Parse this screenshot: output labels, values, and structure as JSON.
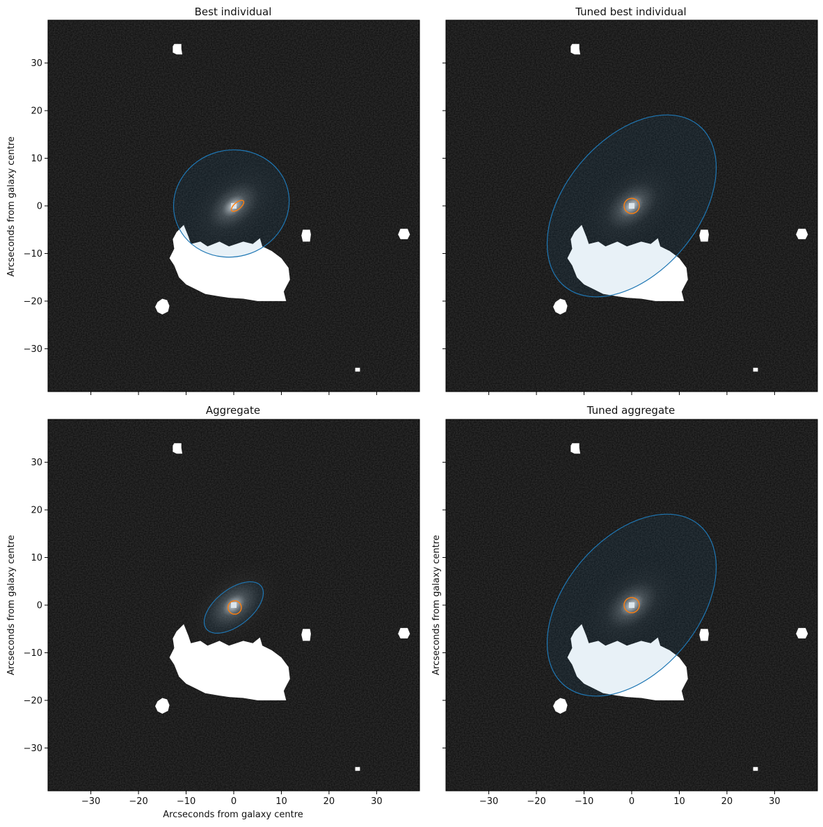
{
  "figure": {
    "colors": {
      "background_image": "#0a0a0a",
      "mask": "#ffffff",
      "ellipse_outer_stroke": "#1f77b4",
      "ellipse_outer_fill": "rgba(31,119,180,0.10)",
      "ellipse_inner_stroke": "#ff7f0e"
    }
  },
  "chart_data": [
    {
      "type": "image",
      "title": "Best individual",
      "xlabel": "",
      "ylabel": "Arcseconds from galaxy centre",
      "xlim": [
        -39,
        39
      ],
      "ylim": [
        -39,
        39
      ],
      "xticks": [
        -30,
        -20,
        -10,
        0,
        10,
        20,
        30
      ],
      "yticks": [
        -30,
        -20,
        -10,
        0,
        10,
        20,
        30
      ],
      "xtick_labels_visible": false,
      "ytick_labels_visible": true,
      "ellipses": [
        {
          "component": "disc",
          "cx": -0.5,
          "cy": 0.5,
          "rx": 12.2,
          "ry": 11.2,
          "angle_deg": 15,
          "color": "#1f77b4",
          "filled": true
        },
        {
          "component": "bulge",
          "cx": 0.8,
          "cy": 0,
          "rx": 1.6,
          "ry": 0.7,
          "angle_deg": 40,
          "color": "#ff7f0e",
          "filled": false
        }
      ]
    },
    {
      "type": "image",
      "title": "Tuned best individual",
      "xlabel": "",
      "ylabel": "",
      "xlim": [
        -39,
        39
      ],
      "ylim": [
        -39,
        39
      ],
      "xticks": [
        -30,
        -20,
        -10,
        0,
        10,
        20,
        30
      ],
      "yticks": [
        -30,
        -20,
        -10,
        0,
        10,
        20,
        30
      ],
      "xtick_labels_visible": false,
      "ytick_labels_visible": false,
      "ellipses": [
        {
          "component": "disc",
          "cx": 0,
          "cy": 0,
          "rx": 22,
          "ry": 14,
          "angle_deg": 50,
          "color": "#1f77b4",
          "filled": true
        },
        {
          "component": "bulge",
          "cx": 0,
          "cy": 0,
          "rx": 1.6,
          "ry": 1.6,
          "angle_deg": 0,
          "color": "#ff7f0e",
          "filled": false
        }
      ]
    },
    {
      "type": "image",
      "title": "Aggregate",
      "xlabel": "Arcseconds from galaxy centre",
      "ylabel": "Arcseconds from galaxy centre",
      "xlim": [
        -39,
        39
      ],
      "ylim": [
        -39,
        39
      ],
      "xticks": [
        -30,
        -20,
        -10,
        0,
        10,
        20,
        30
      ],
      "yticks": [
        -30,
        -20,
        -10,
        0,
        10,
        20,
        30
      ],
      "xtick_labels_visible": true,
      "ytick_labels_visible": true,
      "ellipses": [
        {
          "component": "disc",
          "cx": 0,
          "cy": -0.5,
          "rx": 7.3,
          "ry": 3.8,
          "angle_deg": 38,
          "color": "#1f77b4",
          "filled": true
        },
        {
          "component": "bulge",
          "cx": 0.2,
          "cy": -0.5,
          "rx": 1.4,
          "ry": 1.4,
          "angle_deg": 0,
          "color": "#ff7f0e",
          "filled": false
        }
      ]
    },
    {
      "type": "image",
      "title": "Tuned aggregate",
      "xlabel": "",
      "ylabel": "Arcseconds from galaxy centre",
      "xlim": [
        -39,
        39
      ],
      "ylim": [
        -39,
        39
      ],
      "xticks": [
        -30,
        -20,
        -10,
        0,
        10,
        20,
        30
      ],
      "yticks": [
        -30,
        -20,
        -10,
        0,
        10,
        20,
        30
      ],
      "xtick_labels_visible": true,
      "ytick_labels_visible": false,
      "ellipses": [
        {
          "component": "disc",
          "cx": 0,
          "cy": 0,
          "rx": 22,
          "ry": 14,
          "angle_deg": 50,
          "color": "#1f77b4",
          "filled": true
        },
        {
          "component": "bulge",
          "cx": 0,
          "cy": 0,
          "rx": 1.6,
          "ry": 1.6,
          "angle_deg": 0,
          "color": "#ff7f0e",
          "filled": false
        }
      ]
    }
  ],
  "masked_regions": [
    {
      "name": "star-top",
      "points": [
        [
          -12.5,
          34
        ],
        [
          -11,
          34
        ],
        [
          -11,
          33
        ],
        [
          -10.8,
          31.8
        ],
        [
          -12,
          31.8
        ],
        [
          -12.8,
          32.2
        ],
        [
          -12.8,
          33.5
        ]
      ]
    },
    {
      "name": "star-left",
      "points": [
        [
          -16,
          -20.2
        ],
        [
          -15,
          -19.5
        ],
        [
          -14,
          -19.8
        ],
        [
          -13.5,
          -21
        ],
        [
          -13.8,
          -22.2
        ],
        [
          -15,
          -22.8
        ],
        [
          -16,
          -22.3
        ],
        [
          -16.5,
          -21.2
        ]
      ]
    },
    {
      "name": "star-right",
      "points": [
        [
          14.5,
          -5
        ],
        [
          16,
          -5
        ],
        [
          16.2,
          -6
        ],
        [
          16,
          -7.5
        ],
        [
          14.5,
          -7.5
        ],
        [
          14.2,
          -6.2
        ]
      ]
    },
    {
      "name": "star-edge",
      "points": [
        [
          35,
          -4.8
        ],
        [
          36.5,
          -4.8
        ],
        [
          37,
          -6
        ],
        [
          36.5,
          -7
        ],
        [
          35,
          -7
        ],
        [
          34.5,
          -6
        ]
      ]
    },
    {
      "name": "star-small",
      "points": [
        [
          25.5,
          -34
        ],
        [
          26.5,
          -34
        ],
        [
          26.5,
          -34.8
        ],
        [
          25.5,
          -34.8
        ]
      ]
    },
    {
      "name": "companion-galaxy",
      "points": [
        [
          -11.5,
          -5
        ],
        [
          -10.5,
          -4
        ],
        [
          -9.5,
          -6.5
        ],
        [
          -9,
          -8
        ],
        [
          -7,
          -7.5
        ],
        [
          -5.5,
          -8.5
        ],
        [
          -3,
          -7.5
        ],
        [
          -1,
          -8.5
        ],
        [
          2,
          -7.5
        ],
        [
          4,
          -8
        ],
        [
          5.5,
          -6.8
        ],
        [
          6,
          -8.5
        ],
        [
          8,
          -9.5
        ],
        [
          10,
          -11
        ],
        [
          11.5,
          -13
        ],
        [
          11.8,
          -15.5
        ],
        [
          11,
          -17
        ],
        [
          10.5,
          -18
        ],
        [
          11,
          -20
        ],
        [
          8.5,
          -20
        ],
        [
          5,
          -20
        ],
        [
          2,
          -19.5
        ],
        [
          -1,
          -19.3
        ],
        [
          -3,
          -19
        ],
        [
          -6,
          -18.5
        ],
        [
          -8,
          -17.5
        ],
        [
          -10,
          -16.5
        ],
        [
          -11.5,
          -15
        ],
        [
          -12.5,
          -12.5
        ],
        [
          -13.5,
          -11
        ],
        [
          -12.5,
          -9
        ],
        [
          -12.8,
          -7
        ],
        [
          -12,
          -5.5
        ]
      ]
    }
  ]
}
